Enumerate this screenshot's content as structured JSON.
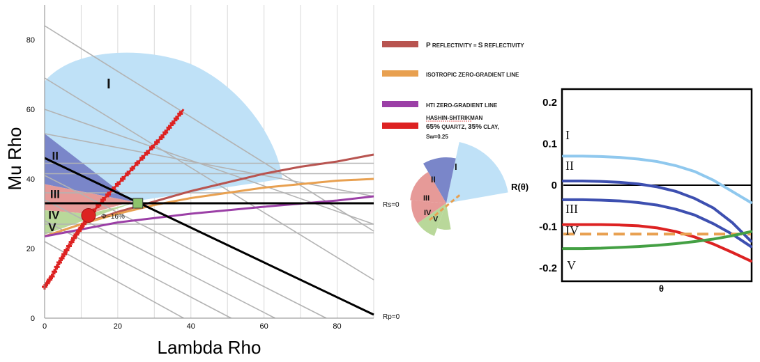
{
  "chart_data": [
    {
      "type": "line",
      "xlabel": "Lambda Rho",
      "ylabel": "Mu Rho",
      "xlim": [
        0,
        90
      ],
      "ylim": [
        0,
        90
      ],
      "xticks": [
        0,
        20,
        40,
        60,
        80
      ],
      "yticks": [
        0,
        20,
        40,
        60,
        80
      ],
      "grid": "vertical",
      "legend_position": "right",
      "legend": [
        {
          "label": "P reflectivity = S reflectivity",
          "color": "#b85450"
        },
        {
          "label": "Isotropic zero-gradient  line",
          "color": "#e8a050"
        },
        {
          "label": "HTI zero-gradient  line",
          "color": "#9b3fa6"
        },
        {
          "label": "Hashin-Shtrikman",
          "color": "#dd2222"
        },
        {
          "label": "65% quartz, 35% clay,",
          "color": "#dd2222"
        },
        {
          "label": "Sw=0.25",
          "color": "#dd2222"
        }
      ],
      "series": [
        {
          "name": "P reflectivity = S reflectivity",
          "color": "#b85450",
          "points": [
            [
              0,
              23.5
            ],
            [
              10,
              27
            ],
            [
              20,
              30.5
            ],
            [
              30,
              33.5
            ],
            [
              40,
              36.5
            ],
            [
              50,
              39
            ],
            [
              60,
              41.5
            ],
            [
              70,
              43.5
            ],
            [
              80,
              45
            ],
            [
              90,
              47
            ]
          ]
        },
        {
          "name": "Isotropic zero-gradient  line",
          "color": "#e8a050",
          "points": [
            [
              0,
              23.5
            ],
            [
              10,
              27
            ],
            [
              20,
              30
            ],
            [
              30,
              32.5
            ],
            [
              40,
              34.5
            ],
            [
              50,
              36
            ],
            [
              60,
              37.5
            ],
            [
              70,
              38.5
            ],
            [
              80,
              39.5
            ],
            [
              90,
              40
            ]
          ]
        },
        {
          "name": "HTI zero-gradient  line",
          "color": "#9b3fa6",
          "points": [
            [
              0,
              23.5
            ],
            [
              20,
              27.5
            ],
            [
              40,
              30
            ],
            [
              60,
              32
            ],
            [
              80,
              33.8
            ],
            [
              90,
              35
            ]
          ]
        },
        {
          "name": "Hashin-Shtrikman",
          "color": "#dd2222",
          "points": [
            [
              0,
              9
            ],
            [
              2,
              12
            ],
            [
              4,
              16
            ],
            [
              6,
              19.5
            ],
            [
              8,
              23
            ],
            [
              10,
              26
            ],
            [
              12,
              29
            ],
            [
              16,
              34
            ],
            [
              20,
              38.5
            ],
            [
              24,
              43
            ],
            [
              28,
              47.5
            ],
            [
              32,
              52
            ],
            [
              35,
              56
            ],
            [
              38,
              60
            ]
          ]
        },
        {
          "name": "Rp=0",
          "color": "#000000",
          "points": [
            [
              0,
              46
            ],
            [
              90,
              1
            ]
          ]
        },
        {
          "name": "Rs=0",
          "color": "#000000",
          "points": [
            [
              0,
              33
            ],
            [
              90,
              33
            ]
          ]
        }
      ],
      "gray_diagonals": [
        {
          "from": [
            0,
            84
          ],
          "to": [
            90,
            25
          ]
        },
        {
          "from": [
            0,
            69
          ],
          "to": [
            90,
            11
          ]
        },
        {
          "from": [
            0,
            60
          ],
          "to": [
            90,
            27
          ]
        },
        {
          "from": [
            0,
            53
          ],
          "to": [
            90,
            35
          ]
        },
        {
          "from": [
            0,
            41
          ],
          "to": [
            77,
            0
          ]
        },
        {
          "from": [
            0,
            34
          ],
          "to": [
            63,
            0
          ]
        },
        {
          "from": [
            0,
            28
          ],
          "to": [
            51,
            0
          ]
        },
        {
          "from": [
            0,
            22
          ],
          "to": [
            38,
            0
          ]
        }
      ],
      "gray_horizontals": [
        44.5,
        41.5,
        36,
        27,
        24.5
      ],
      "class_labels": [
        "I",
        "II",
        "III",
        "IV",
        "V"
      ],
      "annotations": [
        {
          "text": "Φ~16%",
          "x": 15.5,
          "y": 29.5
        },
        {
          "text": "Rs=0",
          "x": 92,
          "y": 33
        },
        {
          "text": "Rp=0",
          "x": 92,
          "y": 0.5
        }
      ],
      "markers": [
        {
          "shape": "circle",
          "color": "#dd2222",
          "x": 12,
          "y": 29.5
        },
        {
          "shape": "square",
          "color": "#8dc36b",
          "x": 25.5,
          "y": 33
        }
      ]
    },
    {
      "type": "line",
      "xlabel": "θ",
      "ylabel": "R(θ)",
      "ylim": [
        -0.23,
        0.23
      ],
      "yticks": [
        0.2,
        0.1,
        0,
        -0.1,
        -0.2
      ],
      "ytick_labels": [
        "0.2",
        "0.1",
        "0",
        "-0.1",
        "-0.2"
      ],
      "series": [
        {
          "name": "I",
          "color": "#8fc8ee",
          "x": [
            0,
            0.1,
            0.2,
            0.3,
            0.4,
            0.5,
            0.6,
            0.7,
            0.8,
            0.9,
            1.0
          ],
          "values": [
            0.07,
            0.07,
            0.069,
            0.067,
            0.063,
            0.057,
            0.047,
            0.033,
            0.012,
            -0.015,
            -0.042
          ]
        },
        {
          "name": "II",
          "color": "#3d4fb0",
          "x": [
            0,
            0.1,
            0.2,
            0.3,
            0.4,
            0.5,
            0.6,
            0.7,
            0.8,
            0.9,
            1.0
          ],
          "values": [
            0.01,
            0.01,
            0.009,
            0.007,
            0.003,
            -0.004,
            -0.015,
            -0.032,
            -0.055,
            -0.09,
            -0.135
          ]
        },
        {
          "name": "III",
          "color": "#3d4fb0",
          "x": [
            0,
            0.1,
            0.2,
            0.3,
            0.4,
            0.5,
            0.6,
            0.7,
            0.8,
            0.9,
            1.0
          ],
          "values": [
            -0.035,
            -0.035,
            -0.036,
            -0.038,
            -0.042,
            -0.048,
            -0.058,
            -0.072,
            -0.093,
            -0.118,
            -0.148
          ]
        },
        {
          "name": "IV",
          "color": "#dd2222",
          "x": [
            0,
            0.1,
            0.2,
            0.3,
            0.4,
            0.5,
            0.6,
            0.7,
            0.8,
            0.9,
            1.0
          ],
          "values": [
            -0.095,
            -0.095,
            -0.095,
            -0.096,
            -0.098,
            -0.103,
            -0.112,
            -0.125,
            -0.142,
            -0.162,
            -0.183
          ]
        },
        {
          "name": "IV",
          "color": "#e8a050",
          "dashed": true,
          "x": [
            0,
            1.0
          ],
          "values": [
            -0.118,
            -0.118
          ]
        },
        {
          "name": "V",
          "color": "#44a044",
          "x": [
            0,
            0.1,
            0.2,
            0.3,
            0.4,
            0.5,
            0.6,
            0.7,
            0.8,
            0.9,
            1.0
          ],
          "values": [
            -0.153,
            -0.153,
            -0.152,
            -0.15,
            -0.148,
            -0.145,
            -0.141,
            -0.136,
            -0.13,
            -0.122,
            -0.112
          ]
        }
      ]
    }
  ],
  "small_diagram": {
    "labels": [
      "I",
      "II",
      "III",
      "IV",
      "V"
    ]
  },
  "text": {
    "leg1": "P reflectivity = S reflectivity",
    "leg2": "isotropic zero-gradient  line",
    "leg3": "HTI zero-gradient  line",
    "leg4": "Hashin-Shtrikman",
    "leg5": "65% quartz, 35% clay,",
    "leg6": "Sw=0.25",
    "rs0": "Rs=0",
    "rp0": "Rp=0",
    "phi": "Φ~16%",
    "xlabel": "Lambda Rho",
    "ylabel": "Mu Rho",
    "rlabel": "R(θ)",
    "thetalabel": "θ"
  }
}
